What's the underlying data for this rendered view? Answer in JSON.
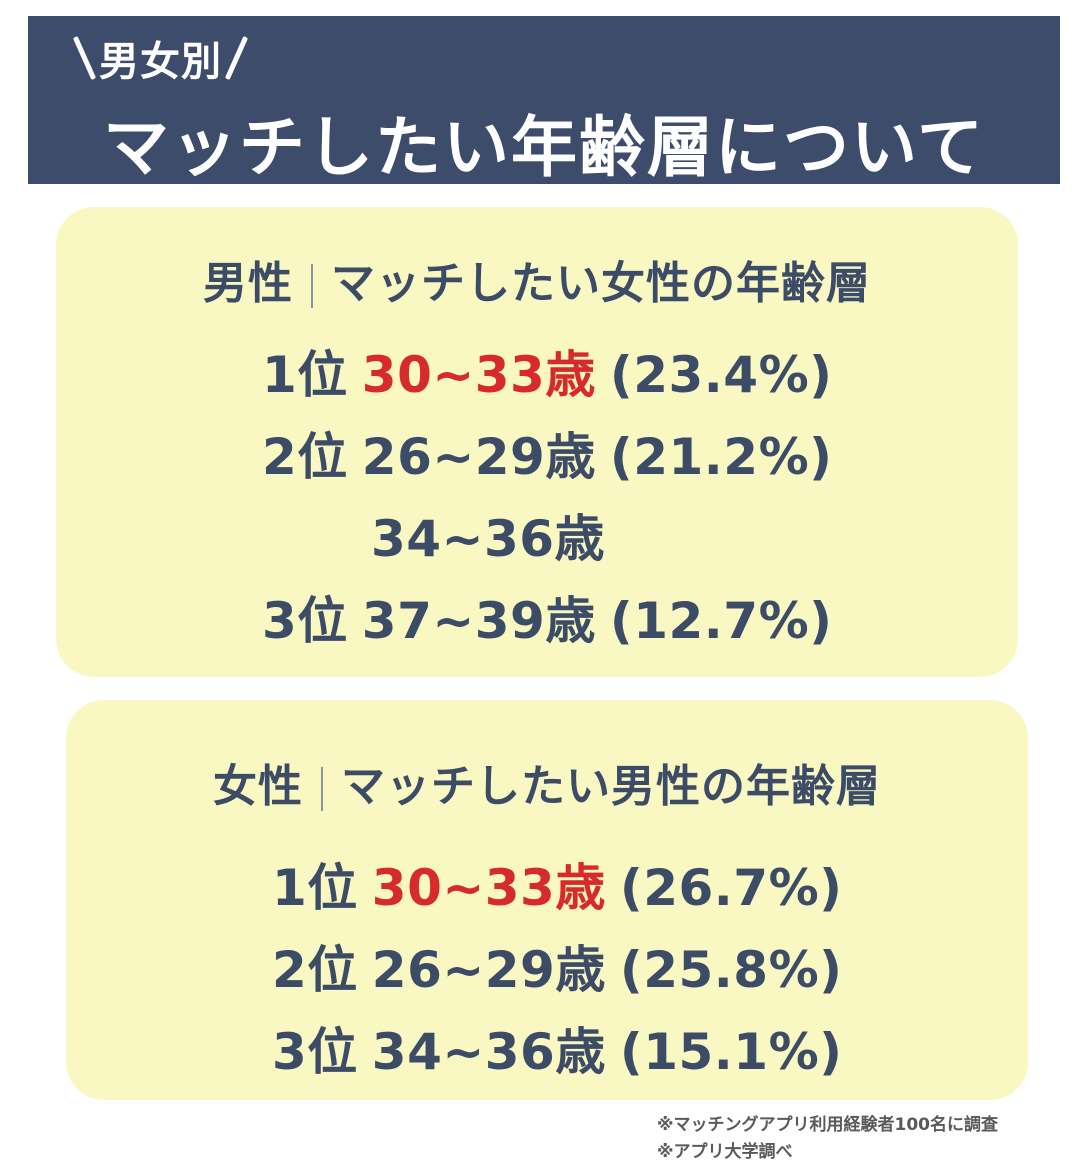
{
  "header": {
    "subtitle": "男女別",
    "title": "マッチしたい年齢層について"
  },
  "men": {
    "title_left": "男性",
    "title_right": "マッチしたい女性の年齢層",
    "ranks": [
      {
        "rank": "1位",
        "age": "30~33歳",
        "percent": "(23.4%)"
      },
      {
        "rank": "2位",
        "age": "26~29歳",
        "percent": "(21.2%)"
      },
      {
        "rank": "",
        "age": "34~36歳",
        "percent": ""
      },
      {
        "rank": "3位",
        "age": "37~39歳",
        "percent": "(12.7%)"
      }
    ]
  },
  "women": {
    "title_left": "女性",
    "title_right": "マッチしたい男性の年齢層",
    "ranks": [
      {
        "rank": "1位",
        "age": "30~33歳",
        "percent": "(26.7%)"
      },
      {
        "rank": "2位",
        "age": "26~29歳",
        "percent": "(25.8%)"
      },
      {
        "rank": "3位",
        "age": "34~36歳",
        "percent": "(15.1%)"
      }
    ]
  },
  "notes": [
    "※マッチングアプリ利用経験者100名に調査",
    "※アプリ大学調べ"
  ],
  "colors": {
    "header_bg": "#3d4c6b",
    "card_bg": "#f9f7c2",
    "text": "#3d4c66",
    "highlight": "#d72a2a"
  }
}
